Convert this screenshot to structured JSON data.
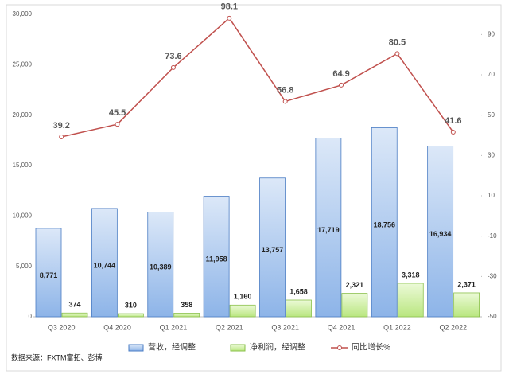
{
  "chart_data": {
    "type": "bar",
    "categories": [
      "Q3 2020",
      "Q4 2020",
      "Q1 2021",
      "Q2 2021",
      "Q3 2021",
      "Q4 2021",
      "Q1 2022",
      "Q2 2022"
    ],
    "series": [
      {
        "name": "营收，经调整",
        "type": "bar",
        "color": "#8db4e8",
        "values": [
          8771,
          10744,
          10389,
          11958,
          13757,
          17719,
          18756,
          16934
        ],
        "value_labels": [
          "8,771",
          "10,744",
          "10,389",
          "11,958",
          "13,757",
          "17,719",
          "18,756",
          "16,934"
        ]
      },
      {
        "name": "净利润，经调整",
        "type": "bar",
        "color": "#c8f09a",
        "values": [
          374,
          310,
          358,
          1160,
          1658,
          2321,
          3318,
          2371
        ],
        "value_labels": [
          "374",
          "310",
          "358",
          "1,160",
          "1,658",
          "2,321",
          "3,318",
          "2,371"
        ]
      },
      {
        "name": "同比增长%",
        "type": "line",
        "axis": "y2",
        "color": "#c0504d",
        "values": [
          39.2,
          45.5,
          73.6,
          98.1,
          56.8,
          64.9,
          80.5,
          41.6
        ]
      }
    ],
    "ylim": [
      0,
      30000
    ],
    "yticks": [
      0,
      {
        "value": 5000,
        "label": "5,000"
      },
      {
        "value": 10000,
        "label": "10,000"
      },
      {
        "value": 15000,
        "label": "15,000"
      },
      {
        "value": 20000,
        "label": "20,000"
      },
      {
        "value": 25000,
        "label": "25,000"
      },
      {
        "value": 30000,
        "label": "30,000"
      }
    ],
    "y2lim": [
      -50,
      100
    ],
    "y2ticks": [
      -50,
      -30,
      -10,
      10,
      30,
      50,
      70,
      90
    ],
    "source": "数据来源：FXTM富拓、彭博"
  }
}
